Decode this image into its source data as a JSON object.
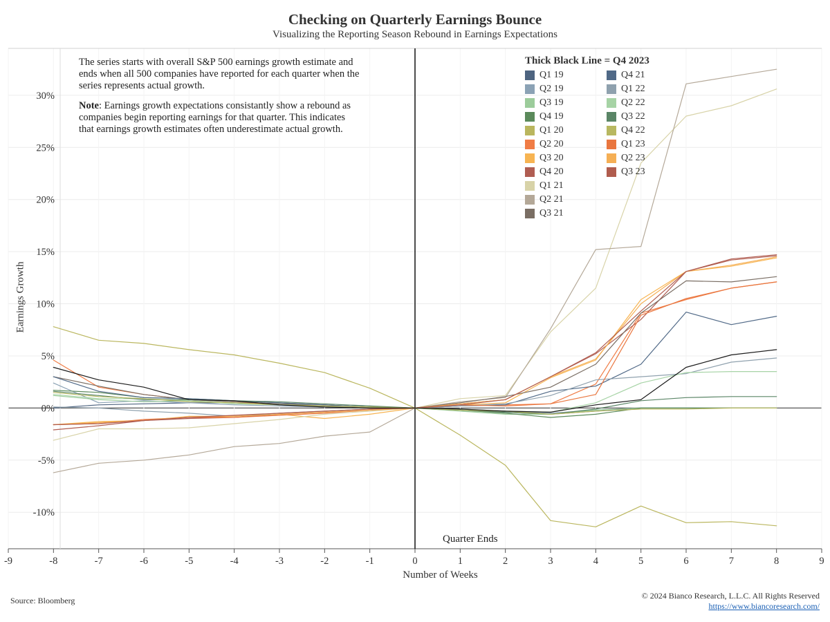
{
  "title": "Checking on Quarterly Earnings Bounce",
  "subtitle": "Visualizing the Reporting Season Rebound in Earnings Expectations",
  "note": {
    "p1": "The series starts with overall S&P 500 earnings growth estimate and ends when all 500 companies have reported for each quarter when the series represents actual growth.",
    "p2_bold": "Note",
    "p2_rest": ": Earnings growth expectations consistantly show a rebound as companies begin reporting earnings for that quarter. This indicates that earnings growth estimates often underestimate actual growth."
  },
  "legend_title": "Thick Black Line = Q4 2023",
  "quarter_ends_label": "Quarter Ends",
  "source": "Source: Bloomberg",
  "copyright": "© 2024 Bianco Research, L.L.C. All Rights Reserved",
  "website": "https://www.biancoresearch.com/",
  "chart_data": {
    "type": "line",
    "xlabel": "Number of Weeks",
    "ylabel": "Earnings Growth",
    "xlim": [
      -9,
      9
    ],
    "ylim": [
      -13.5,
      34.5
    ],
    "xticks": [
      "-9",
      "-8",
      "-7",
      "-6",
      "-5",
      "-4",
      "-3",
      "-2",
      "-1",
      "0",
      "1",
      "2",
      "3",
      "4",
      "5",
      "6",
      "7",
      "8",
      "9"
    ],
    "yticks": [
      "-10%",
      "-5%",
      "0%",
      "5%",
      "10%",
      "15%",
      "20%",
      "25%",
      "30%"
    ],
    "x": [
      -8,
      -7,
      -6,
      -5,
      -4,
      -3,
      -2,
      -1,
      0,
      1,
      2,
      3,
      4,
      5,
      6,
      7,
      8
    ],
    "highlight_series": "Q4 2023",
    "series": [
      {
        "name": "Q1 19",
        "color": "#4e6480",
        "values": [
          0.0,
          0.3,
          0.4,
          0.5,
          0.5,
          0.3,
          0.1,
          0.0,
          0,
          -0.2,
          -0.4,
          -0.6,
          -0.3,
          0.0,
          0.0,
          0.0,
          0.0
        ]
      },
      {
        "name": "Q2 19",
        "color": "#8ba2b5",
        "values": [
          2.4,
          0.5,
          0.7,
          0.5,
          0.3,
          0.2,
          0.1,
          0.0,
          0,
          -0.2,
          -0.3,
          -0.5,
          -0.2,
          0.0,
          0.0,
          0.0,
          0.0
        ]
      },
      {
        "name": "Q3 19",
        "color": "#9ccc9b",
        "values": [
          1.2,
          0.8,
          0.6,
          0.7,
          0.5,
          0.4,
          0.2,
          0.1,
          0,
          -0.3,
          -0.6,
          -0.6,
          -0.2,
          0.0,
          0.0,
          0.0,
          0.0
        ]
      },
      {
        "name": "Q4 19",
        "color": "#5b8a5b",
        "values": [
          1.7,
          1.5,
          1.0,
          0.9,
          0.7,
          0.5,
          0.3,
          0.1,
          0,
          -0.2,
          -0.5,
          -0.9,
          -0.6,
          0.0,
          0.0,
          0.0,
          0.0
        ]
      },
      {
        "name": "Q1 20",
        "color": "#bab65e",
        "values": [
          7.8,
          6.5,
          6.2,
          5.6,
          5.1,
          4.3,
          3.4,
          1.9,
          0,
          -2.6,
          -5.5,
          -10.8,
          -11.4,
          -9.4,
          -11.0,
          -10.9,
          -11.3
        ]
      },
      {
        "name": "Q2 20",
        "color": "#f07c45",
        "values": [
          4.6,
          2.0,
          1.3,
          0.8,
          0.6,
          0.3,
          0.2,
          0.1,
          0,
          0.2,
          0.3,
          0.4,
          2.3,
          9.1,
          10.4,
          11.5,
          12.1
        ]
      },
      {
        "name": "Q3 20",
        "color": "#f7b452",
        "values": [
          -1.6,
          -1.3,
          -1.2,
          -0.9,
          -0.8,
          -0.6,
          -1.0,
          -0.6,
          0,
          0.3,
          0.5,
          2.9,
          4.6,
          10.4,
          13.1,
          13.6,
          14.4
        ]
      },
      {
        "name": "Q4 20",
        "color": "#b05d52",
        "values": [
          -2.1,
          -1.7,
          -1.2,
          -1.0,
          -0.9,
          -0.6,
          -0.4,
          -0.2,
          0,
          0.4,
          0.8,
          3.0,
          5.2,
          8.5,
          13.1,
          14.3,
          14.7
        ]
      },
      {
        "name": "Q1 21",
        "color": "#d8d3a8",
        "values": [
          -3.1,
          -2.0,
          -2.0,
          -1.9,
          -1.5,
          -1.1,
          -0.6,
          -0.3,
          0,
          0.9,
          1.2,
          7.3,
          11.5,
          23.5,
          28.0,
          29.0,
          30.6
        ]
      },
      {
        "name": "Q2 21",
        "color": "#b4a898",
        "values": [
          -6.2,
          -5.3,
          -5.0,
          -4.5,
          -3.7,
          -3.4,
          -2.7,
          -2.3,
          0,
          0.6,
          1.0,
          7.6,
          15.2,
          15.5,
          31.1,
          31.8,
          32.5
        ]
      },
      {
        "name": "Q3 21",
        "color": "#7a6e64",
        "values": [
          3.0,
          2.1,
          1.3,
          0.8,
          0.6,
          0.4,
          0.3,
          0.1,
          0,
          0.5,
          1.1,
          2.0,
          4.2,
          9.1,
          12.2,
          12.1,
          12.6
        ]
      },
      {
        "name": "Q4 21",
        "color": "#506987",
        "values": [
          3.0,
          1.6,
          1.0,
          0.9,
          0.7,
          0.5,
          0.3,
          0.1,
          0,
          0.2,
          0.3,
          1.6,
          2.1,
          4.2,
          9.2,
          8.0,
          8.8
        ]
      },
      {
        "name": "Q1 22",
        "color": "#8fa1ae",
        "values": [
          0.1,
          0.0,
          -0.3,
          -0.5,
          -0.8,
          -0.5,
          -0.3,
          -0.1,
          0,
          0.2,
          0.4,
          1.2,
          2.7,
          3.0,
          3.3,
          4.4,
          4.8
        ]
      },
      {
        "name": "Q2 22",
        "color": "#a6d3a5",
        "values": [
          1.3,
          0.9,
          0.9,
          0.7,
          0.4,
          0.3,
          0.2,
          0.1,
          0,
          -0.1,
          -0.3,
          -0.4,
          0.5,
          2.4,
          3.4,
          3.5,
          3.5
        ]
      },
      {
        "name": "Q3 22",
        "color": "#5a8566",
        "values": [
          1.6,
          1.2,
          0.8,
          0.8,
          0.7,
          0.6,
          0.4,
          0.2,
          0,
          -0.2,
          -0.4,
          -0.6,
          -0.1,
          0.7,
          1.0,
          1.1,
          1.1
        ]
      },
      {
        "name": "Q4 22",
        "color": "#b8b861",
        "values": [
          1.5,
          1.1,
          0.9,
          0.6,
          0.5,
          0.3,
          0.2,
          0.1,
          0,
          -0.2,
          -0.3,
          -0.6,
          -0.3,
          -0.1,
          -0.1,
          0.0,
          0.0
        ]
      },
      {
        "name": "Q1 23",
        "color": "#e9763f",
        "values": [
          -1.6,
          -1.5,
          -1.1,
          -0.9,
          -0.9,
          -0.7,
          -0.5,
          -0.2,
          0,
          0.3,
          0.2,
          0.4,
          1.3,
          8.9,
          10.5,
          11.5,
          12.1
        ]
      },
      {
        "name": "Q2 23",
        "color": "#f5af55",
        "values": [
          -1.6,
          -1.4,
          -1.2,
          -0.8,
          -0.8,
          -0.6,
          -0.4,
          -0.2,
          0,
          0.4,
          0.8,
          3.0,
          4.7,
          10.0,
          13.1,
          13.7,
          14.5
        ]
      },
      {
        "name": "Q3 23",
        "color": "#b05c4e",
        "values": [
          -1.6,
          -1.5,
          -1.2,
          -0.9,
          -0.7,
          -0.5,
          -0.3,
          -0.1,
          0,
          0.3,
          0.8,
          3.0,
          5.3,
          9.3,
          13.1,
          14.2,
          14.6
        ]
      },
      {
        "name": "Q4 23",
        "color": "#1a1a1a",
        "values": [
          3.9,
          2.7,
          2.0,
          0.8,
          0.7,
          0.3,
          0.1,
          0.0,
          0,
          -0.1,
          -0.3,
          -0.4,
          0.3,
          0.8,
          3.9,
          5.1,
          5.6
        ]
      }
    ],
    "legend_position": "top-right"
  },
  "legend": {
    "col1": [
      {
        "label": "Q1 19",
        "color": "#4e6480"
      },
      {
        "label": "Q2 19",
        "color": "#8ba2b5"
      },
      {
        "label": "Q3 19",
        "color": "#9ccc9b"
      },
      {
        "label": "Q4 19",
        "color": "#5b8a5b"
      },
      {
        "label": "Q1 20",
        "color": "#bab65e"
      },
      {
        "label": "Q2 20",
        "color": "#f07c45"
      },
      {
        "label": "Q3 20",
        "color": "#f7b452"
      },
      {
        "label": "Q4 20",
        "color": "#b05d52"
      },
      {
        "label": "Q1 21",
        "color": "#d8d3a8"
      },
      {
        "label": "Q2 21",
        "color": "#b4a898"
      },
      {
        "label": "Q3 21",
        "color": "#7a6e64"
      }
    ],
    "col2": [
      {
        "label": "Q4 21",
        "color": "#506987"
      },
      {
        "label": "Q1 22",
        "color": "#8fa1ae"
      },
      {
        "label": "Q2 22",
        "color": "#a6d3a5"
      },
      {
        "label": "Q3 22",
        "color": "#5a8566"
      },
      {
        "label": "Q4 22",
        "color": "#b8b861"
      },
      {
        "label": "Q1 23",
        "color": "#e9763f"
      },
      {
        "label": "Q2 23",
        "color": "#f5af55"
      },
      {
        "label": "Q3 23",
        "color": "#b05c4e"
      }
    ]
  }
}
